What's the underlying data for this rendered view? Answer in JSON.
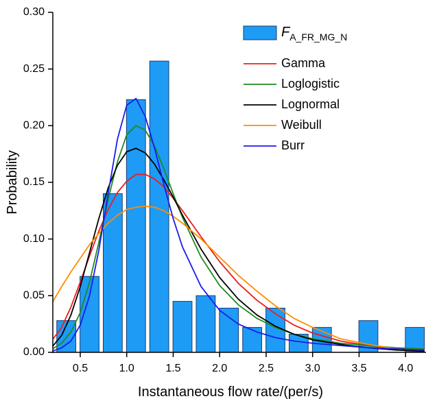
{
  "chart_data": {
    "type": "combo",
    "x_label": "Instantaneous flow rate/(per/s)",
    "y_label": "Probability",
    "xlim": [
      0.205,
      4.22
    ],
    "ylim": [
      0,
      0.3
    ],
    "xticks": [
      0.5,
      {
        "value": 1,
        "label": "1.0"
      },
      1.5,
      {
        "value": 2,
        "label": "2.0"
      },
      2.5,
      {
        "value": 3,
        "label": "3.0"
      },
      3.5,
      {
        "value": 4,
        "label": "4.0"
      }
    ],
    "yticks": [
      {
        "value": 0,
        "label": "0.00"
      },
      {
        "value": 0.05,
        "label": "0.05"
      },
      {
        "value": 0.1,
        "label": "0.10"
      },
      {
        "value": 0.15,
        "label": "0.15"
      },
      {
        "value": 0.2,
        "label": "0.20"
      },
      {
        "value": 0.25,
        "label": "0.25"
      },
      {
        "value": 0.3,
        "label": "0.30"
      }
    ],
    "series": [
      {
        "name": "F",
        "name_subscript": "A_FR_MG_N",
        "kind": "bar",
        "color": "#1e9bf5",
        "edge_color": "#1b3d6e",
        "x": [
          0.35,
          0.6,
          0.85,
          1.1,
          1.35,
          1.6,
          1.85,
          2.1,
          2.35,
          2.6,
          2.85,
          3.1,
          3.35,
          3.6,
          3.85,
          4.1
        ],
        "values": [
          0.028,
          0.067,
          0.14,
          0.223,
          0.257,
          0.045,
          0.05,
          0.039,
          0.022,
          0.039,
          0.016,
          0.022,
          0,
          0.028,
          0,
          0.022
        ]
      },
      {
        "name": "Gamma",
        "kind": "line",
        "color": "#ee1c1c",
        "x": [
          0.2,
          0.3,
          0.4,
          0.5,
          0.6,
          0.7,
          0.8,
          0.9,
          1.0,
          1.1,
          1.2,
          1.3,
          1.4,
          1.5,
          1.6,
          1.8,
          2.0,
          2.2,
          2.4,
          2.6,
          2.8,
          3.0,
          3.3,
          3.6,
          3.9,
          4.2
        ],
        "values": [
          0.011,
          0.022,
          0.04,
          0.062,
          0.085,
          0.107,
          0.126,
          0.141,
          0.151,
          0.157,
          0.157,
          0.153,
          0.146,
          0.136,
          0.125,
          0.102,
          0.08,
          0.061,
          0.046,
          0.034,
          0.024,
          0.017,
          0.01,
          0.006,
          0.003,
          0.002
        ]
      },
      {
        "name": "Loglogistic",
        "kind": "line",
        "color": "#1f8a1f",
        "x": [
          0.2,
          0.3,
          0.4,
          0.5,
          0.6,
          0.7,
          0.8,
          0.9,
          1.0,
          1.1,
          1.2,
          1.3,
          1.4,
          1.5,
          1.6,
          1.8,
          2.0,
          2.2,
          2.4,
          2.6,
          2.8,
          3.0,
          3.3,
          3.6,
          3.9,
          4.2
        ],
        "values": [
          0.003,
          0.008,
          0.018,
          0.035,
          0.062,
          0.097,
          0.135,
          0.168,
          0.192,
          0.2,
          0.196,
          0.182,
          0.162,
          0.14,
          0.119,
          0.084,
          0.059,
          0.042,
          0.03,
          0.022,
          0.016,
          0.012,
          0.008,
          0.006,
          0.004,
          0.003
        ]
      },
      {
        "name": "Lognormal",
        "kind": "line",
        "color": "#000000",
        "x": [
          0.2,
          0.3,
          0.4,
          0.5,
          0.6,
          0.7,
          0.8,
          0.9,
          1.0,
          1.1,
          1.2,
          1.3,
          1.4,
          1.5,
          1.6,
          1.8,
          2.0,
          2.2,
          2.4,
          2.6,
          2.8,
          3.0,
          3.3,
          3.6,
          3.9,
          4.2
        ],
        "values": [
          0.005,
          0.015,
          0.033,
          0.058,
          0.088,
          0.118,
          0.145,
          0.165,
          0.177,
          0.18,
          0.176,
          0.166,
          0.152,
          0.137,
          0.121,
          0.091,
          0.066,
          0.047,
          0.033,
          0.023,
          0.016,
          0.011,
          0.007,
          0.004,
          0.002,
          0.001
        ]
      },
      {
        "name": "Weibull",
        "kind": "line",
        "color": "#ff8c00",
        "x": [
          0.2,
          0.3,
          0.4,
          0.5,
          0.6,
          0.7,
          0.8,
          0.9,
          1.0,
          1.1,
          1.2,
          1.3,
          1.4,
          1.5,
          1.6,
          1.8,
          2.0,
          2.2,
          2.4,
          2.6,
          2.8,
          3.0,
          3.3,
          3.6,
          3.9,
          4.2
        ],
        "values": [
          0.044,
          0.058,
          0.071,
          0.083,
          0.095,
          0.105,
          0.114,
          0.121,
          0.126,
          0.128,
          0.129,
          0.128,
          0.125,
          0.12,
          0.114,
          0.1,
          0.084,
          0.068,
          0.054,
          0.041,
          0.03,
          0.022,
          0.012,
          0.007,
          0.003,
          0.002
        ]
      },
      {
        "name": "Burr",
        "kind": "line",
        "color": "#1a1aee",
        "x": [
          0.2,
          0.3,
          0.4,
          0.5,
          0.6,
          0.7,
          0.8,
          0.9,
          1.0,
          1.1,
          1.2,
          1.3,
          1.4,
          1.5,
          1.6,
          1.8,
          2.0,
          2.2,
          2.4,
          2.6,
          2.8,
          3.0,
          3.3,
          3.6,
          3.9,
          4.2
        ],
        "values": [
          0.001,
          0.004,
          0.01,
          0.024,
          0.05,
          0.09,
          0.14,
          0.188,
          0.218,
          0.224,
          0.208,
          0.18,
          0.148,
          0.118,
          0.093,
          0.058,
          0.037,
          0.025,
          0.018,
          0.013,
          0.01,
          0.008,
          0.006,
          0.004,
          0.003,
          0.002
        ]
      }
    ]
  }
}
